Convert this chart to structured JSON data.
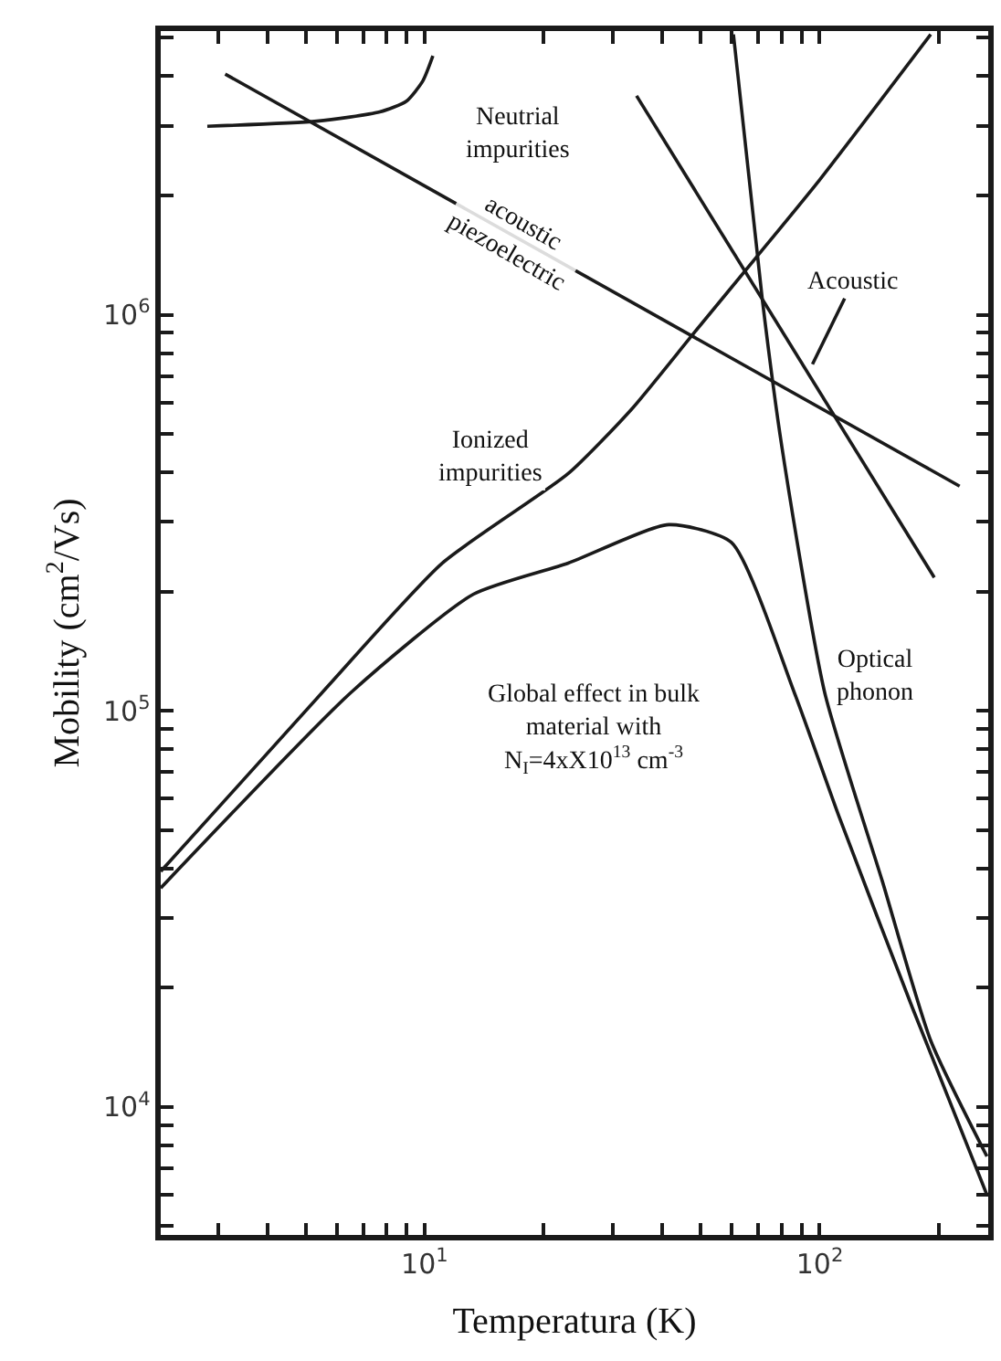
{
  "chart_data": {
    "type": "line",
    "xlabel": "Temperatura (K)",
    "ylabel": "Mobility (cm$^{2}$/Vs)",
    "log": "xy",
    "marker": "none",
    "line_style": "solid",
    "xlim": [
      2.15,
      267
    ],
    "ylim": [
      4750,
      5200000
    ],
    "xticks": [
      {
        "value": 3,
        "label": null
      },
      {
        "value": 4,
        "label": null
      },
      {
        "value": 5,
        "label": null
      },
      {
        "value": 6,
        "label": null
      },
      {
        "value": 7,
        "label": null
      },
      {
        "value": 8,
        "label": null
      },
      {
        "value": 9,
        "label": null
      },
      {
        "value": 10,
        "label": "10$^{1}$"
      },
      {
        "value": 20,
        "label": null
      },
      {
        "value": 30,
        "label": null
      },
      {
        "value": 40,
        "label": null
      },
      {
        "value": 50,
        "label": null
      },
      {
        "value": 60,
        "label": null
      },
      {
        "value": 70,
        "label": null
      },
      {
        "value": 80,
        "label": null
      },
      {
        "value": 90,
        "label": null
      },
      {
        "value": 100,
        "label": "10$^{2}$"
      },
      {
        "value": 200,
        "label": null
      }
    ],
    "yticks": [
      {
        "value": 5000,
        "label": null
      },
      {
        "value": 6000,
        "label": null
      },
      {
        "value": 7000,
        "label": null
      },
      {
        "value": 8000,
        "label": null
      },
      {
        "value": 9000,
        "label": null
      },
      {
        "value": 10000,
        "label": "10$^{4}$"
      },
      {
        "value": 20000,
        "label": null
      },
      {
        "value": 30000,
        "label": null
      },
      {
        "value": 40000,
        "label": null
      },
      {
        "value": 50000,
        "label": null
      },
      {
        "value": 60000,
        "label": null
      },
      {
        "value": 70000,
        "label": null
      },
      {
        "value": 80000,
        "label": null
      },
      {
        "value": 90000,
        "label": null
      },
      {
        "value": 100000,
        "label": "10$^{5}$"
      },
      {
        "value": 200000,
        "label": null
      },
      {
        "value": 300000,
        "label": null
      },
      {
        "value": 400000,
        "label": null
      },
      {
        "value": 500000,
        "label": null
      },
      {
        "value": 600000,
        "label": null
      },
      {
        "value": 700000,
        "label": null
      },
      {
        "value": 800000,
        "label": null
      },
      {
        "value": 900000,
        "label": null
      },
      {
        "value": 1000000,
        "label": "10$^{6}$"
      },
      {
        "value": 2000000,
        "label": null
      },
      {
        "value": 3000000,
        "label": null
      },
      {
        "value": 4000000,
        "label": null
      },
      {
        "value": 5000000,
        "label": null
      }
    ],
    "series": [
      {
        "color": "#1a1a1a",
        "x": [
          2.82,
          5.34,
          7.7,
          9.0,
          9.9,
          10.5
        ],
        "values": [
          2990000,
          3080000,
          3250000,
          3460000,
          3890000,
          4500000
        ]
      },
      {
        "color": "#1a1a1a",
        "x": [
          3.13,
          226
        ],
        "values": [
          4050000,
          369000
        ]
      },
      {
        "color": "#1a1a1a",
        "x": [
          2.15,
          5.5,
          11.1,
          23.1,
          33.3,
          48.1,
          69.3,
          100,
          191
        ],
        "values": [
          39300,
          111000,
          236000,
          397000,
          575000,
          900000,
          1400000,
          2190000,
          5100000
        ]
      },
      {
        "color": "#1a1a1a",
        "x": [
          2.15,
          6.5,
          13.3,
          23.1,
          41.5,
          59.8,
          86.3,
          112,
          172,
          265
        ],
        "values": [
          35700,
          111000,
          197000,
          236000,
          295000,
          266000,
          111000,
          54000,
          17700,
          6000
        ]
      },
      {
        "color": "#1a1a1a",
        "x": [
          60.5,
          71.6,
          80.3,
          103,
          144,
          191,
          265
        ],
        "values": [
          5100000,
          1090000,
          461000,
          111000,
          37200,
          14700,
          7500
        ]
      },
      {
        "color": "#1a1a1a",
        "x": [
          34.4,
          195
        ],
        "values": [
          3570000,
          217000
        ]
      }
    ],
    "annotations": [
      "Neutrial\nimpurities",
      {
        "text": "acoustic\npiezoelectric",
        "x": 16.9,
        "y": 1560000
      },
      "Ionized\nimpurities",
      {
        "text": "Acoustic",
        "x": 95.9,
        "y": 750000
      },
      "Optical\nphonon",
      "Global effect in bulk\nmaterial with\nN$_{I}$=4xX10$^{13}$ cm$^{-3}$"
    ]
  }
}
